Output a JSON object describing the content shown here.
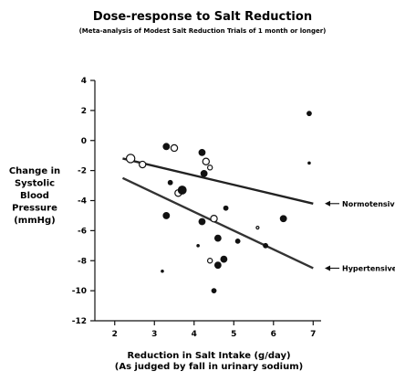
{
  "chart_data": {
    "type": "scatter",
    "title": "Dose-response to Salt Reduction",
    "subtitle": "(Meta-analysis of Modest Salt Reduction Trials of 1 month or longer)",
    "xlabel": [
      "Reduction in Salt Intake (g/day)",
      "(As judged by fall in urinary sodium)"
    ],
    "ylabel": [
      "Change in",
      "Systolic",
      "Blood",
      "Pressure",
      "(mmHg)"
    ],
    "xlim": [
      1.5,
      7.2
    ],
    "ylim": [
      -12,
      4
    ],
    "xticks": [
      2,
      3,
      4,
      5,
      6,
      7
    ],
    "yticks": [
      4,
      2,
      0,
      -2,
      -4,
      -6,
      -8,
      -10,
      -12
    ],
    "grid": false,
    "series": [
      {
        "name": "Normotensives",
        "marker": "open-circle",
        "points": [
          {
            "x": 2.4,
            "y": -1.2,
            "size": "large"
          },
          {
            "x": 2.7,
            "y": -1.6,
            "size": "medium"
          },
          {
            "x": 3.5,
            "y": -0.5,
            "size": "medium"
          },
          {
            "x": 3.6,
            "y": -3.5,
            "size": "medium"
          },
          {
            "x": 4.3,
            "y": -1.4,
            "size": "medium"
          },
          {
            "x": 4.4,
            "y": -1.8,
            "size": "small"
          },
          {
            "x": 4.5,
            "y": -5.2,
            "size": "medium"
          },
          {
            "x": 4.4,
            "y": -8.0,
            "size": "small"
          },
          {
            "x": 5.6,
            "y": -5.8,
            "size": "tiny"
          }
        ],
        "regression": {
          "x": [
            2.2,
            7.0
          ],
          "y": [
            -1.2,
            -4.2
          ]
        },
        "annotation": "Normotensives"
      },
      {
        "name": "Hypertensives",
        "marker": "filled-circle",
        "points": [
          {
            "x": 3.3,
            "y": -0.4,
            "size": "medium"
          },
          {
            "x": 3.3,
            "y": -5.0,
            "size": "medium"
          },
          {
            "x": 3.4,
            "y": -2.8,
            "size": "small"
          },
          {
            "x": 3.7,
            "y": -3.3,
            "size": "large"
          },
          {
            "x": 3.2,
            "y": -8.7,
            "size": "tiny"
          },
          {
            "x": 4.2,
            "y": -0.8,
            "size": "medium"
          },
          {
            "x": 4.25,
            "y": -2.2,
            "size": "medium"
          },
          {
            "x": 4.2,
            "y": -5.4,
            "size": "medium"
          },
          {
            "x": 4.1,
            "y": -7.0,
            "size": "tiny"
          },
          {
            "x": 4.6,
            "y": -6.5,
            "size": "medium"
          },
          {
            "x": 4.6,
            "y": -8.3,
            "size": "medium"
          },
          {
            "x": 4.75,
            "y": -7.9,
            "size": "medium"
          },
          {
            "x": 4.5,
            "y": -10.0,
            "size": "small"
          },
          {
            "x": 4.8,
            "y": -4.5,
            "size": "small"
          },
          {
            "x": 5.1,
            "y": -6.7,
            "size": "small"
          },
          {
            "x": 5.8,
            "y": -7.0,
            "size": "small"
          },
          {
            "x": 6.25,
            "y": -5.2,
            "size": "medium"
          },
          {
            "x": 6.9,
            "y": 1.8,
            "size": "small"
          },
          {
            "x": 6.9,
            "y": -1.5,
            "size": "tiny"
          }
        ],
        "regression": {
          "x": [
            2.2,
            7.0
          ],
          "y": [
            -2.5,
            -8.5
          ]
        },
        "annotation": "Hypertensives"
      }
    ]
  }
}
